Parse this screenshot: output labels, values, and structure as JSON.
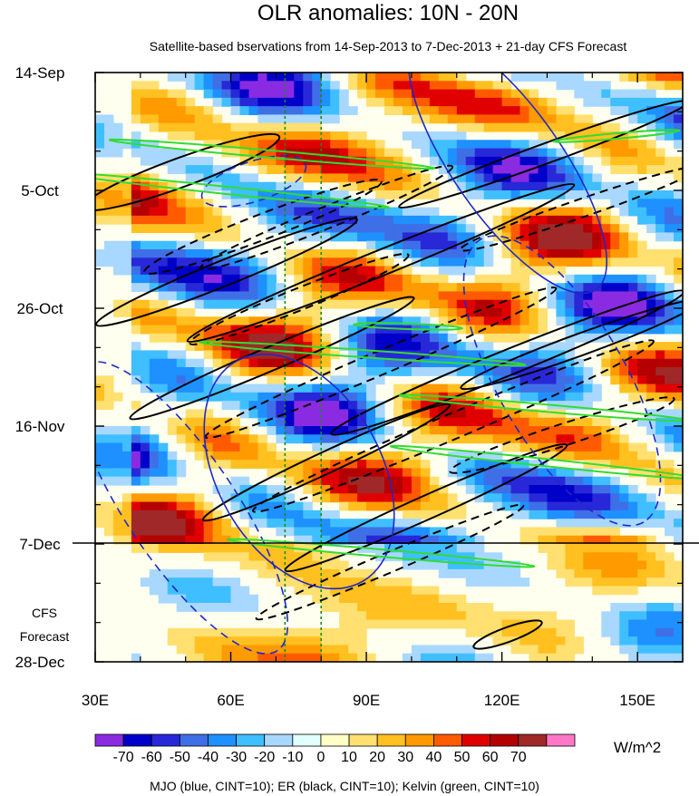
{
  "chart_data": {
    "type": "heatmap",
    "title": "OLR anomalies: 10N - 20N",
    "subtitle": "Satellite-based bservations from 14-Sep-2013 to 7-Dec-2013 + 21-day CFS Forecast",
    "x_axis": {
      "ticks": [
        {
          "value": 30,
          "label": "30E"
        },
        {
          "value": 60,
          "label": "60E"
        },
        {
          "value": 90,
          "label": "90E"
        },
        {
          "value": 120,
          "label": "120E"
        },
        {
          "value": 150,
          "label": "150E"
        }
      ],
      "range": [
        30,
        160
      ]
    },
    "y_axis": {
      "ticks": [
        {
          "label": "14-Sep",
          "day": 0
        },
        {
          "label": "5-Oct",
          "day": 21
        },
        {
          "label": "26-Oct",
          "day": 42
        },
        {
          "label": "16-Nov",
          "day": 63
        },
        {
          "label": "7-Dec",
          "day": 84
        },
        {
          "label": "28-Dec",
          "day": 105
        }
      ],
      "direction": "time increases downward"
    },
    "forecast_label_lines": [
      "CFS",
      "Forecast"
    ],
    "observation_end": "7-Dec",
    "colorbar": {
      "levels": [
        -70,
        -60,
        -50,
        -40,
        -30,
        -20,
        -10,
        0,
        10,
        20,
        30,
        40,
        50,
        60,
        70
      ],
      "colors": [
        "#8a2be2",
        "#0000c8",
        "#2828d8",
        "#3f6fe6",
        "#1e90ff",
        "#3fbfff",
        "#a8d8ff",
        "#e0ffff",
        "#ffffc8",
        "#ffe070",
        "#ffc020",
        "#ff9a00",
        "#ff5a00",
        "#e00000",
        "#b40000",
        "#a02828",
        "#ff78c8"
      ],
      "unit": "W/m^2"
    },
    "footnote": "MJO (blue, CINT=10); ER (black, CINT=10); Kelvin (green, CINT=10)",
    "overlays": {
      "mjo_color": "#1e28c8",
      "er_color": "#000000",
      "kelvin_color": "#32dc32",
      "reference_lines_color": "#1a8a1a",
      "reference_longitudes": [
        72,
        80
      ]
    }
  }
}
